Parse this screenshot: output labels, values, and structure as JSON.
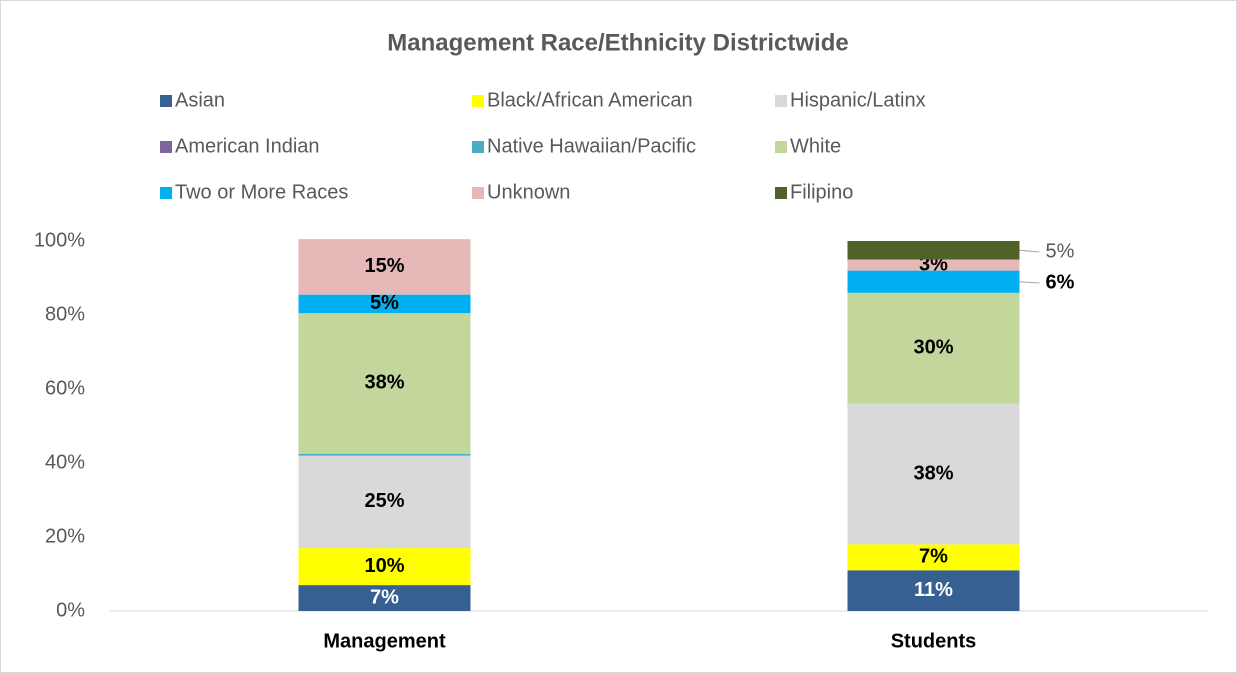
{
  "chart_data": {
    "type": "stacked_bar",
    "title": "Management Race/Ethnicity Districtwide",
    "categories": [
      "Management",
      "Students"
    ],
    "series": [
      {
        "name": "Asian",
        "color": "#376092",
        "values": [
          7,
          11
        ],
        "value_labels": [
          "7%",
          "11%"
        ]
      },
      {
        "name": "Black/African American",
        "color": "#ffff00",
        "values": [
          10,
          7
        ],
        "value_labels": [
          "10%",
          "7%"
        ]
      },
      {
        "name": "Hispanic/Latinx",
        "color": "#d9d9d9",
        "values": [
          25,
          38
        ],
        "value_labels": [
          "25%",
          "38%"
        ]
      },
      {
        "name": "American Indian",
        "color": "#8064a2",
        "values": [
          0,
          0
        ],
        "value_labels": [
          null,
          null
        ]
      },
      {
        "name": "Native Hawaiian/Pacific",
        "color": "#4bacc6",
        "values": [
          0.5,
          0
        ],
        "value_labels": [
          null,
          null
        ]
      },
      {
        "name": "White",
        "color": "#c3d69b",
        "values": [
          38,
          30
        ],
        "value_labels": [
          "38%",
          "30%"
        ]
      },
      {
        "name": "Two or More Races",
        "color": "#00b0f0",
        "values": [
          5,
          6
        ],
        "value_labels": [
          "5%",
          "6%"
        ]
      },
      {
        "name": "Unknown",
        "color": "#e6b9b8",
        "values": [
          15,
          3
        ],
        "value_labels": [
          "15%",
          "3%"
        ]
      },
      {
        "name": "Filipino",
        "color": "#4f6228",
        "values": [
          0,
          5
        ],
        "value_labels": [
          null,
          "5%"
        ]
      }
    ],
    "ylim": [
      0,
      100
    ],
    "yticks": [
      {
        "value": 0,
        "label": "0%"
      },
      {
        "value": 20,
        "label": "20%"
      },
      {
        "value": 40,
        "label": "40%"
      },
      {
        "value": 60,
        "label": "60%"
      },
      {
        "value": 80,
        "label": "80%"
      },
      {
        "value": 100,
        "label": "100%"
      }
    ],
    "legend": "top",
    "grid": false
  }
}
